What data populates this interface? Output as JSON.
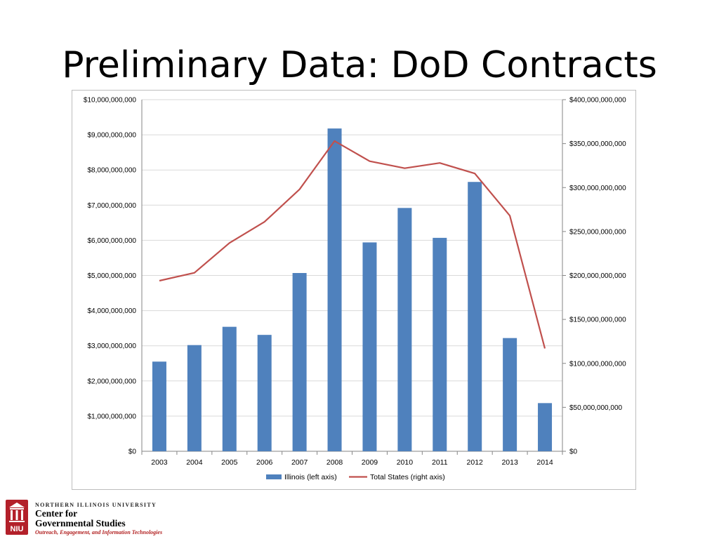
{
  "slide": {
    "title": "Preliminary Data: DoD Contracts"
  },
  "footer": {
    "university": "NORTHERN ILLINOIS UNIVERSITY",
    "center_line1": "Center for",
    "center_line2": "Governmental Studies",
    "tagline": "Outreach, Engagement, and Information Technologies",
    "logo_text": "NIU"
  },
  "colors": {
    "bar": "#4f81bd",
    "line": "#c0504d",
    "grid": "#d9d9d9",
    "axis": "#868686",
    "logo": "#b3202a"
  },
  "chart_data": {
    "type": "bar",
    "categories": [
      "2003",
      "2004",
      "2005",
      "2006",
      "2007",
      "2008",
      "2009",
      "2010",
      "2011",
      "2012",
      "2013",
      "2014"
    ],
    "series": [
      {
        "name": "Illinois (left axis)",
        "type": "bar",
        "axis": "left",
        "values": [
          2550000000,
          3020000000,
          3540000000,
          3310000000,
          5070000000,
          9180000000,
          5940000000,
          6920000000,
          6070000000,
          7660000000,
          3220000000,
          1370000000
        ]
      },
      {
        "name": "Total States (right axis)",
        "type": "line",
        "axis": "right",
        "values": [
          194000000000,
          203000000000,
          237000000000,
          261000000000,
          298000000000,
          353000000000,
          330000000000,
          322000000000,
          328000000000,
          316000000000,
          268000000000,
          117000000000
        ]
      }
    ],
    "ylim": [
      0,
      10000000000
    ],
    "y2lim": [
      0,
      400000000000
    ],
    "left_ticks": [
      "$0",
      "$1,000,000,000",
      "$2,000,000,000",
      "$3,000,000,000",
      "$4,000,000,000",
      "$5,000,000,000",
      "$6,000,000,000",
      "$7,000,000,000",
      "$8,000,000,000",
      "$9,000,000,000",
      "$10,000,000,000"
    ],
    "right_ticks": [
      "$0",
      "$50,000,000,000",
      "$100,000,000,000",
      "$150,000,000,000",
      "$200,000,000,000",
      "$250,000,000,000",
      "$300,000,000,000",
      "$350,000,000,000",
      "$400,000,000,000"
    ],
    "grid": true,
    "legend_position": "bottom"
  }
}
